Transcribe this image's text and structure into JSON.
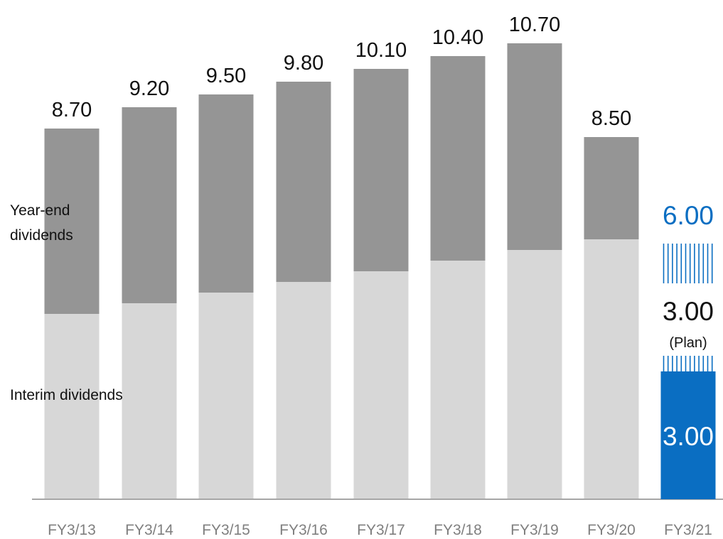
{
  "colors": {
    "interim": "#d7d7d7",
    "year_end": "#959595",
    "plan_accent": "#0a6ec2",
    "axis": "#a6a6a6"
  },
  "labels": {
    "year_end": [
      "Year-end",
      "dividends"
    ],
    "interim": "Interim dividends"
  },
  "chart_data": {
    "type": "bar",
    "stacked": true,
    "categories": [
      "FY3/13",
      "FY3/14",
      "FY3/15",
      "FY3/16",
      "FY3/17",
      "FY3/18",
      "FY3/19",
      "FY3/20",
      "FY3/21"
    ],
    "series": [
      {
        "name": "Interim dividends",
        "values": [
          4.35,
          4.6,
          4.85,
          5.1,
          5.35,
          5.6,
          5.85,
          6.1,
          3.0
        ]
      },
      {
        "name": "Year-end dividends",
        "values": [
          4.35,
          4.6,
          4.65,
          4.7,
          4.75,
          4.8,
          4.85,
          2.4,
          3.0
        ]
      }
    ],
    "totals": [
      "8.70",
      "9.20",
      "9.50",
      "9.80",
      "10.10",
      "10.40",
      "10.70",
      "8.50",
      ""
    ],
    "plan": {
      "category": "FY3/21",
      "total": "6.00",
      "interim": "3.00",
      "year_end": "3.00",
      "year_end_note": "(Plan)"
    },
    "ylim": [
      0,
      11
    ],
    "grid": false,
    "xlabel": "",
    "ylabel": ""
  }
}
